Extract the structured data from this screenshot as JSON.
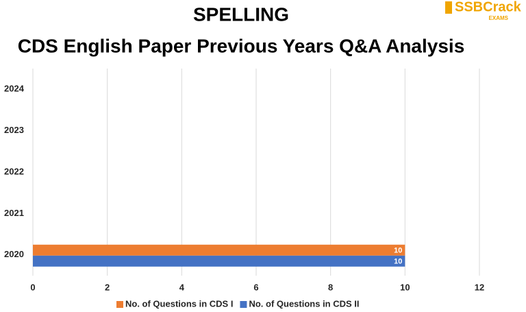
{
  "chart_data": {
    "type": "hbar",
    "title": "SPELLING",
    "subtitle": "CDS English Paper Previous Years Q&A Analysis",
    "categories": [
      "2020",
      "2021",
      "2022",
      "2023",
      "2024"
    ],
    "series": [
      {
        "name": "No. of Questions in CDS I",
        "color": "#ed7d31",
        "values": [
          10,
          null,
          null,
          null,
          null
        ]
      },
      {
        "name": "No. of Questions in CDS II",
        "color": "#4472c4",
        "values": [
          10,
          null,
          null,
          null,
          null
        ]
      }
    ],
    "xlim": [
      0,
      12
    ],
    "xticks": [
      0,
      2,
      4,
      6,
      8,
      10,
      12
    ],
    "grid": true,
    "legend": "bottom"
  },
  "logo": {
    "name": "SSBCrack",
    "sub": "EXAMS"
  }
}
